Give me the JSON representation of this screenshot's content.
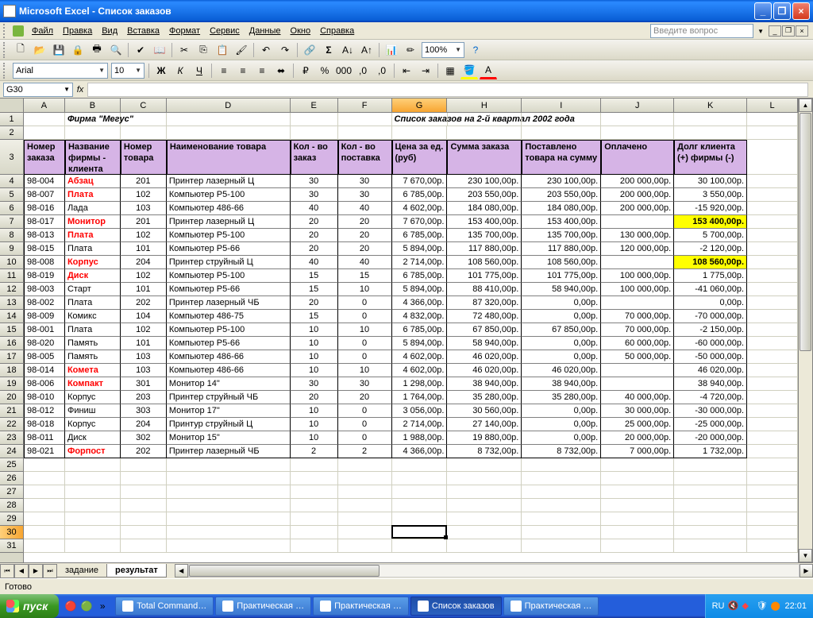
{
  "titlebar": {
    "text": "Microsoft Excel - Список заказов"
  },
  "menu": [
    "Файл",
    "Правка",
    "Вид",
    "Вставка",
    "Формат",
    "Сервис",
    "Данные",
    "Окно",
    "Справка"
  ],
  "help_placeholder": "Введите вопрос",
  "font_name": "Arial",
  "font_size": "10",
  "zoom": "100%",
  "namebox": "G30",
  "columns": [
    "A",
    "B",
    "C",
    "D",
    "E",
    "F",
    "G",
    "H",
    "I",
    "J",
    "K",
    "L"
  ],
  "active_col": "G",
  "active_row": 30,
  "row_count": 31,
  "title1_col": "B",
  "title1": "Фирма \"Мегус\"",
  "title2_col": "G",
  "title2": "Список заказов на 2-й квартал 2002 года",
  "headers": {
    "A": "Номер заказа",
    "B": "Название фирмы - клиента",
    "C": "Номер товара",
    "D": "Наименование товара",
    "E": "Кол - во заказ",
    "F": "Кол - во поставка",
    "G": "Цена за ед. (руб)",
    "H": "Сумма заказа",
    "I": "Поставлено товара на сумму",
    "J": "Оплачено",
    "K": "Долг клиента (+) фирмы (-)"
  },
  "red_firms": [
    "Абзац",
    "Плата",
    "Монитор",
    "Плата",
    "Корпус",
    "Диск",
    "Комета",
    "Компакт",
    "Форпост"
  ],
  "hilite_rows": [
    7,
    10
  ],
  "data": [
    [
      "98-004",
      "Абзац",
      "201",
      "Принтер лазерный Ц",
      "30",
      "30",
      "7 670,00р.",
      "230 100,00р.",
      "230 100,00р.",
      "200 000,00р.",
      "30 100,00р."
    ],
    [
      "98-007",
      "Плата",
      "102",
      "Компьютер Р5-100",
      "30",
      "30",
      "6 785,00р.",
      "203 550,00р.",
      "203 550,00р.",
      "200 000,00р.",
      "3 550,00р."
    ],
    [
      "98-016",
      "Лада",
      "103",
      "Компьютер 486-66",
      "40",
      "40",
      "4 602,00р.",
      "184 080,00р.",
      "184 080,00р.",
      "200 000,00р.",
      "-15 920,00р."
    ],
    [
      "98-017",
      "Монитор",
      "201",
      "Принтер лазерный Ц",
      "20",
      "20",
      "7 670,00р.",
      "153 400,00р.",
      "153 400,00р.",
      "",
      "153 400,00р."
    ],
    [
      "98-013",
      "Плата",
      "102",
      "Компьютер Р5-100",
      "20",
      "20",
      "6 785,00р.",
      "135 700,00р.",
      "135 700,00р.",
      "130 000,00р.",
      "5 700,00р."
    ],
    [
      "98-015",
      "Плата",
      "101",
      "Компьютер Р5-66",
      "20",
      "20",
      "5 894,00р.",
      "117 880,00р.",
      "117 880,00р.",
      "120 000,00р.",
      "-2 120,00р."
    ],
    [
      "98-008",
      "Корпус",
      "204",
      "Принтер струйный Ц",
      "40",
      "40",
      "2 714,00р.",
      "108 560,00р.",
      "108 560,00р.",
      "",
      "108 560,00р."
    ],
    [
      "98-019",
      "Диск",
      "102",
      "Компьютер Р5-100",
      "15",
      "15",
      "6 785,00р.",
      "101 775,00р.",
      "101 775,00р.",
      "100 000,00р.",
      "1 775,00р."
    ],
    [
      "98-003",
      "Старт",
      "101",
      "Компьютер Р5-66",
      "15",
      "10",
      "5 894,00р.",
      "88 410,00р.",
      "58 940,00р.",
      "100 000,00р.",
      "-41 060,00р."
    ],
    [
      "98-002",
      "Плата",
      "202",
      "Принтер лазерный ЧБ",
      "20",
      "0",
      "4 366,00р.",
      "87 320,00р.",
      "0,00р.",
      "",
      "0,00р."
    ],
    [
      "98-009",
      "Комикс",
      "104",
      "Компьютер 486-75",
      "15",
      "0",
      "4 832,00р.",
      "72 480,00р.",
      "0,00р.",
      "70 000,00р.",
      "-70 000,00р."
    ],
    [
      "98-001",
      "Плата",
      "102",
      "Компьютер Р5-100",
      "10",
      "10",
      "6 785,00р.",
      "67 850,00р.",
      "67 850,00р.",
      "70 000,00р.",
      "-2 150,00р."
    ],
    [
      "98-020",
      "Память",
      "101",
      "Компьютер Р5-66",
      "10",
      "0",
      "5 894,00р.",
      "58 940,00р.",
      "0,00р.",
      "60 000,00р.",
      "-60 000,00р."
    ],
    [
      "98-005",
      "Память",
      "103",
      "Компьютер 486-66",
      "10",
      "0",
      "4 602,00р.",
      "46 020,00р.",
      "0,00р.",
      "50 000,00р.",
      "-50 000,00р."
    ],
    [
      "98-014",
      "Комета",
      "103",
      "Компьютер 486-66",
      "10",
      "10",
      "4 602,00р.",
      "46 020,00р.",
      "46 020,00р.",
      "",
      "46 020,00р."
    ],
    [
      "98-006",
      "Компакт",
      "301",
      "Монитор 14\"",
      "30",
      "30",
      "1 298,00р.",
      "38 940,00р.",
      "38 940,00р.",
      "",
      "38 940,00р."
    ],
    [
      "98-010",
      "Корпус",
      "203",
      "Принтер струйный ЧБ",
      "20",
      "20",
      "1 764,00р.",
      "35 280,00р.",
      "35 280,00р.",
      "40 000,00р.",
      "-4 720,00р."
    ],
    [
      "98-012",
      "Финиш",
      "303",
      "Монитор 17\"",
      "10",
      "0",
      "3 056,00р.",
      "30 560,00р.",
      "0,00р.",
      "30 000,00р.",
      "-30 000,00р."
    ],
    [
      "98-018",
      "Корпус",
      "204",
      "Принтур струйный Ц",
      "10",
      "0",
      "2 714,00р.",
      "27 140,00р.",
      "0,00р.",
      "25 000,00р.",
      "-25 000,00р."
    ],
    [
      "98-011",
      "Диск",
      "302",
      "Монитор 15\"",
      "10",
      "0",
      "1 988,00р.",
      "19 880,00р.",
      "0,00р.",
      "20 000,00р.",
      "-20 000,00р."
    ],
    [
      "98-021",
      "Форпост",
      "202",
      "Принтер лазерный ЧБ",
      "2",
      "2",
      "4 366,00р.",
      "8 732,00р.",
      "8 732,00р.",
      "7 000,00р.",
      "1 732,00р."
    ]
  ],
  "sheet_tabs": [
    "задание",
    "результат"
  ],
  "active_tab": 1,
  "status": "Готово",
  "taskbar": {
    "start": "пуск",
    "buttons": [
      "Total Command…",
      "Практическая …",
      "Практическая …",
      "Список заказов",
      "Практическая …"
    ],
    "active_button": 3,
    "lang": "RU",
    "clock": "22:01"
  },
  "colwidths": {
    "A": 52,
    "B": 70,
    "C": 58,
    "D": 156,
    "E": 60,
    "F": 68,
    "G": 70,
    "H": 94,
    "I": 100,
    "J": 92,
    "K": 92,
    "L": 64
  }
}
